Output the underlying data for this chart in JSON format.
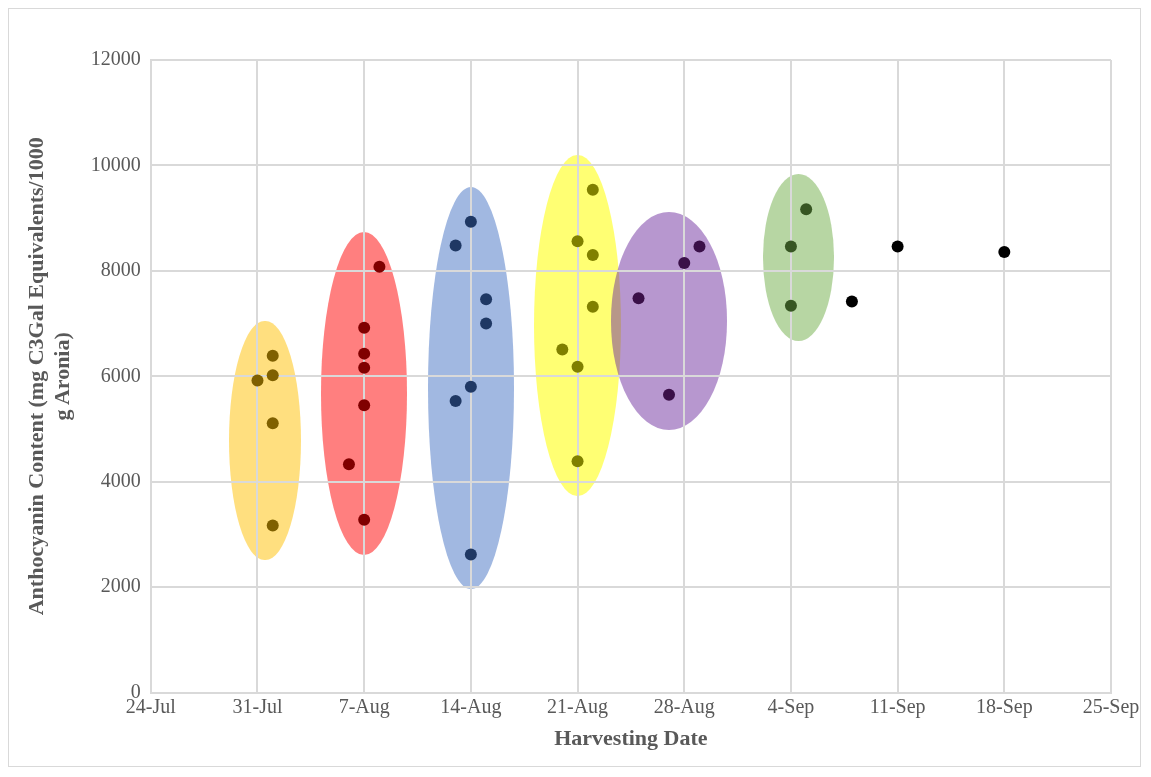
{
  "chart_data": {
    "type": "scatter",
    "xlabel": "Harvesting Date",
    "ylabel": "Anthocyanin Content (mg C3Gal Equivalents/1000 g Aronia)",
    "xlim": [
      "--07-24",
      "--09-25"
    ],
    "xticks": [
      {
        "value": "--07-24",
        "label": "24-Jul"
      },
      {
        "value": "--07-31",
        "label": "31-Jul"
      },
      {
        "value": "--08-07",
        "label": "7-Aug"
      },
      {
        "value": "--08-14",
        "label": "14-Aug"
      },
      {
        "value": "--08-21",
        "label": "21-Aug"
      },
      {
        "value": "--08-28",
        "label": "28-Aug"
      },
      {
        "value": "--09-04",
        "label": "4-Sep"
      },
      {
        "value": "--09-11",
        "label": "11-Sep"
      },
      {
        "value": "--09-18",
        "label": "18-Sep"
      },
      {
        "value": "--09-25",
        "label": "25-Sep"
      }
    ],
    "ylim": [
      0,
      12000
    ],
    "yticks": [
      0,
      2000,
      4000,
      6000,
      8000,
      10000,
      12000
    ],
    "grid": true,
    "legend": false,
    "marker": "circle",
    "series": [
      {
        "color": "#7f6000",
        "x": [
          "--07-31",
          "--08-01",
          "--08-01",
          "--08-01",
          "--08-01"
        ],
        "values": [
          5920,
          6390,
          6020,
          5110,
          3170
        ]
      },
      {
        "color": "#800000",
        "x": [
          "--08-08",
          "--08-07",
          "--08-07",
          "--08-07",
          "--08-07",
          "--08-06",
          "--08-07"
        ],
        "values": [
          8080,
          6920,
          6430,
          6160,
          5450,
          4330,
          3280
        ]
      },
      {
        "color": "#1f3864",
        "x": [
          "--08-14",
          "--08-13",
          "--08-15",
          "--08-15",
          "--08-14",
          "--08-13",
          "--08-14"
        ],
        "values": [
          8930,
          8480,
          7460,
          7000,
          5800,
          5530,
          2620
        ]
      },
      {
        "color": "#808000",
        "x": [
          "--08-22",
          "--08-21",
          "--08-22",
          "--08-22",
          "--08-20",
          "--08-21",
          "--08-21"
        ],
        "values": [
          9540,
          8560,
          8300,
          7320,
          6510,
          6180,
          4390
        ]
      },
      {
        "color": "#3a1048",
        "x": [
          "--08-25",
          "--08-28",
          "--08-29",
          "--08-27"
        ],
        "values": [
          7480,
          8150,
          8460,
          5650
        ]
      },
      {
        "color": "#375623",
        "x": [
          "--09-05",
          "--09-04",
          "--09-04"
        ],
        "values": [
          9170,
          8460,
          7340
        ]
      },
      {
        "color": "#000000",
        "x": [
          "--09-08",
          "--09-11",
          "--09-18"
        ],
        "values": [
          7420,
          8460,
          8360
        ]
      }
    ]
  }
}
